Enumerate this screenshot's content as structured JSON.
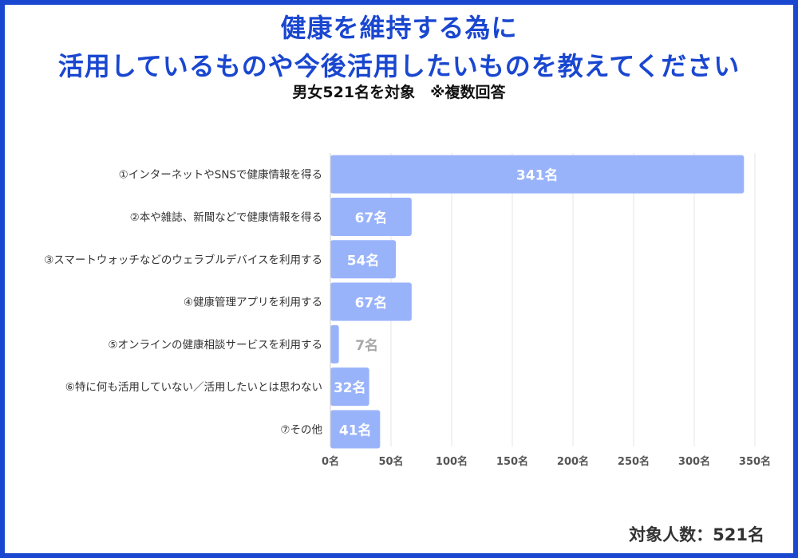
{
  "title_line1": "健康を維持する為に",
  "title_line2": "活用しているものや今後活用したいものを教えてください",
  "subtitle": "男女521名を対象　※複数回答",
  "footer": "対象人数：521名",
  "colors": {
    "border": "#1a47d0",
    "bar": "#99b3fb",
    "title": "#1a47d0"
  },
  "chart_data": {
    "type": "bar",
    "orientation": "horizontal",
    "categories": [
      "①インターネットやSNSで健康情報を得る",
      "②本や雑誌、新聞などで健康情報を得る",
      "③スマートウォッチなどのウェラブルデバイスを利用する",
      "④健康管理アプリを利用する",
      "⑤オンラインの健康相談サービスを利用する",
      "⑥特に何も活用していない／活用したいとは思わない",
      "⑦その他"
    ],
    "values": [
      341,
      67,
      54,
      67,
      7,
      32,
      41
    ],
    "value_labels": [
      "341名",
      "67名",
      "54名",
      "67名",
      "7名",
      "32名",
      "41名"
    ],
    "xlim": [
      0,
      350
    ],
    "xticks": [
      0,
      50,
      100,
      150,
      200,
      250,
      300,
      350
    ],
    "xtick_labels": [
      "0名",
      "50名",
      "100名",
      "150名",
      "200名",
      "250名",
      "300名",
      "350名"
    ],
    "grid": true
  }
}
